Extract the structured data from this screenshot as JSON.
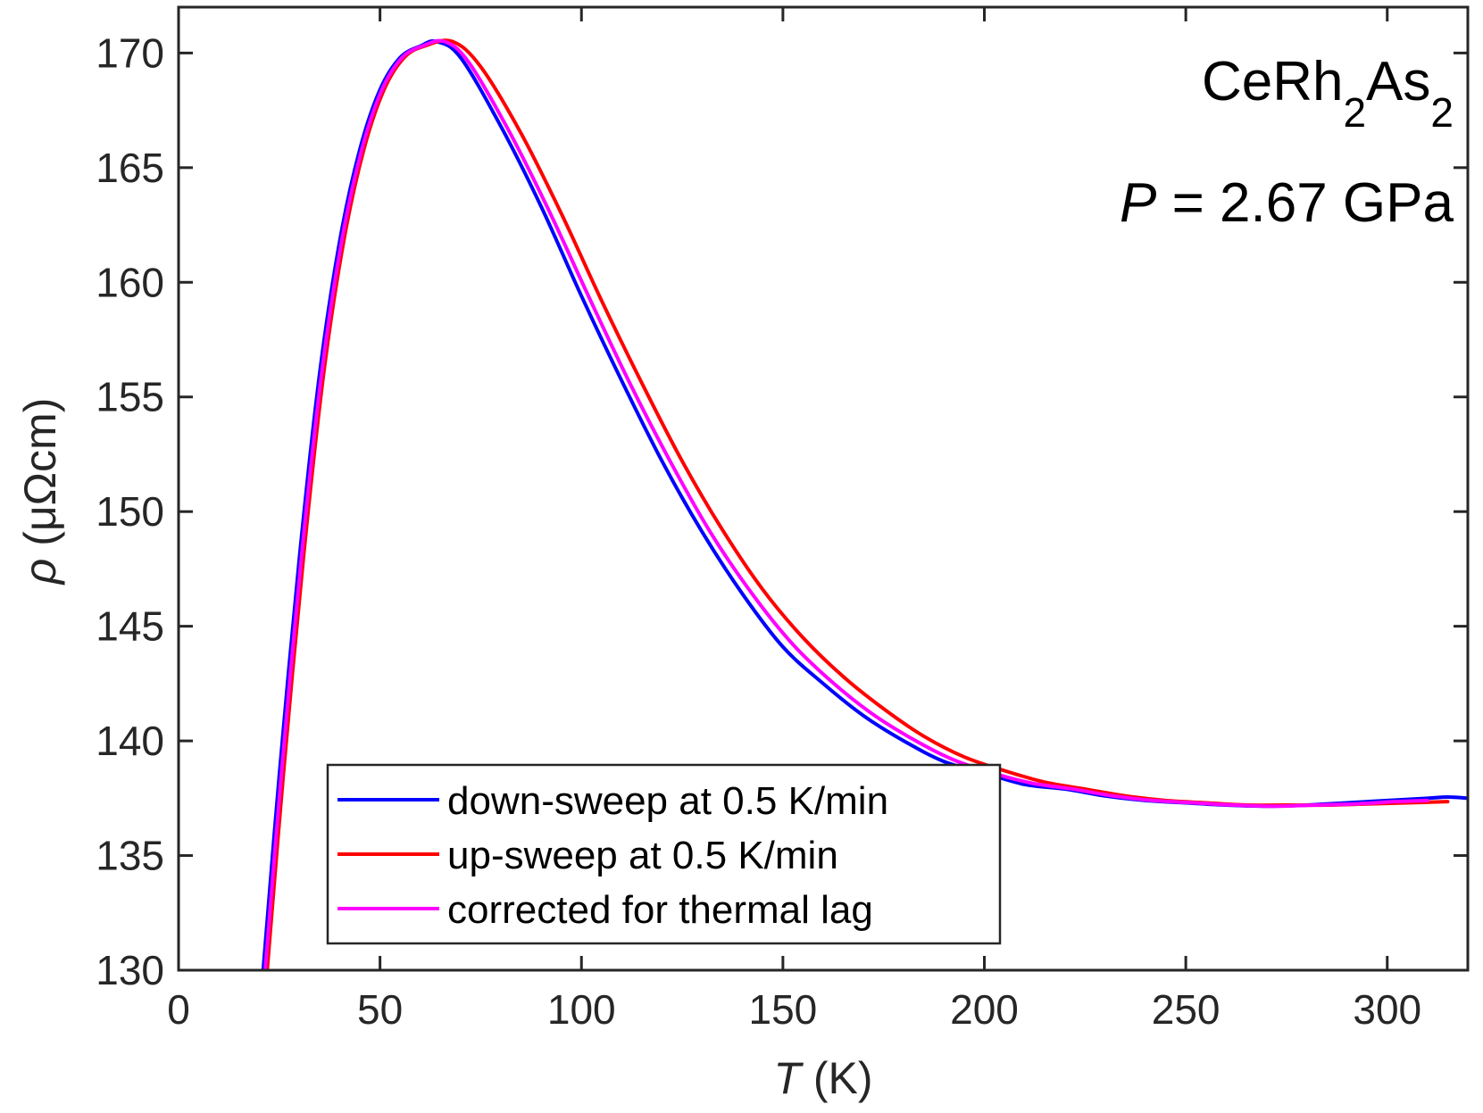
{
  "chart_data": {
    "type": "line",
    "title": "",
    "xlabel_symbol": "T",
    "xlabel_unit": "(K)",
    "ylabel_symbol": "ρ",
    "ylabel_unit": "(μΩcm)",
    "xlim": [
      0,
      320
    ],
    "ylim": [
      130,
      172
    ],
    "xticks": [
      0,
      50,
      100,
      150,
      200,
      250,
      300
    ],
    "yticks": [
      130,
      135,
      140,
      145,
      150,
      155,
      160,
      165,
      170
    ],
    "grid": false,
    "legend_position": "bottom-center",
    "annotations": {
      "compound": {
        "base1": "CeRh",
        "sub1": "2",
        "base2": "As",
        "sub2": "2"
      },
      "pressure": {
        "symbol": "P",
        "text": " = 2.67 GPa"
      }
    },
    "series": [
      {
        "name": "down-sweep at 0.5 K/min",
        "color": "#0000ff",
        "x": [
          21.0,
          25,
          30,
          35,
          40,
          45,
          50,
          55,
          60,
          64,
          70,
          80,
          90,
          100,
          110,
          120,
          130,
          140,
          150,
          160,
          170,
          180,
          190,
          200,
          210,
          220,
          230,
          240,
          250,
          260,
          270,
          280,
          285,
          290,
          300,
          310,
          315,
          320
        ],
        "y": [
          130.0,
          138.5,
          148.0,
          156.0,
          161.8,
          165.8,
          168.4,
          169.8,
          170.3,
          170.5,
          169.8,
          166.8,
          163.3,
          159.4,
          155.7,
          152.2,
          149.1,
          146.4,
          144.1,
          142.5,
          141.1,
          140.0,
          139.1,
          138.6,
          138.1,
          137.9,
          137.6,
          137.4,
          137.3,
          137.2,
          137.15,
          137.2,
          137.25,
          137.3,
          137.4,
          137.5,
          137.55,
          137.5
        ]
      },
      {
        "name": "up-sweep at 0.5 K/min",
        "color": "#ff0000",
        "x": [
          22.0,
          26,
          31,
          36,
          41,
          46,
          51,
          56,
          61,
          68,
          75,
          85,
          95,
          105,
          115,
          125,
          135,
          145,
          155,
          165,
          175,
          185,
          195,
          205,
          215,
          225,
          235,
          245,
          255,
          265,
          275,
          285,
          295,
          305,
          315
        ],
        "y": [
          130.0,
          138.5,
          148.0,
          156.0,
          161.8,
          165.8,
          168.4,
          169.8,
          170.3,
          170.5,
          169.4,
          166.5,
          163.0,
          159.2,
          155.6,
          152.2,
          149.2,
          146.6,
          144.5,
          142.8,
          141.4,
          140.2,
          139.3,
          138.7,
          138.2,
          137.9,
          137.6,
          137.4,
          137.3,
          137.2,
          137.2,
          137.2,
          137.25,
          137.3,
          137.35
        ]
      },
      {
        "name": "corrected for thermal lag",
        "color": "#ff00ff",
        "x": [
          21.5,
          25.5,
          30.5,
          35.5,
          40.5,
          45.5,
          50.5,
          55.5,
          60.5,
          66,
          72,
          82,
          92,
          102,
          112,
          122,
          132,
          142,
          152,
          162,
          172,
          182,
          192,
          202,
          212,
          222,
          232,
          242,
          252,
          262,
          272,
          282,
          292,
          302,
          310
        ],
        "y": [
          130.0,
          138.5,
          148.0,
          156.0,
          161.8,
          165.8,
          168.4,
          169.8,
          170.3,
          170.5,
          169.6,
          166.6,
          163.1,
          159.3,
          155.6,
          152.2,
          149.1,
          146.5,
          144.3,
          142.6,
          141.2,
          140.1,
          139.2,
          138.6,
          138.15,
          137.9,
          137.6,
          137.4,
          137.3,
          137.2,
          137.15,
          137.2,
          137.25,
          137.35,
          137.4
        ]
      }
    ]
  }
}
